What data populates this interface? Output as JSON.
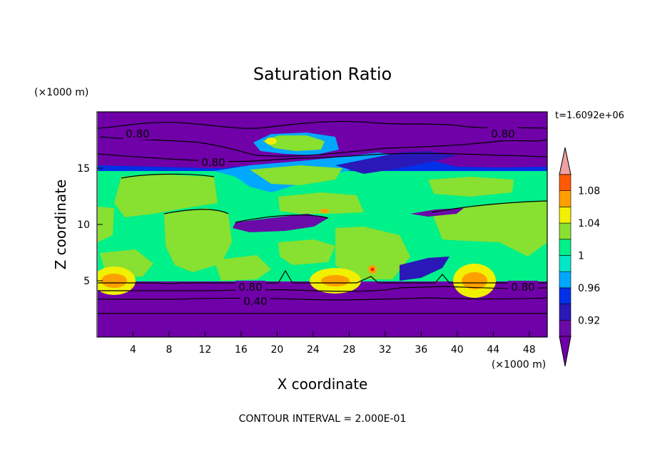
{
  "chart_data": {
    "type": "heatmap",
    "title": "Saturation Ratio",
    "xlabel": "X coordinate",
    "ylabel": "Z coordinate",
    "x_unit_label": "(×1000 m)",
    "y_unit_label": "(×1000 m)",
    "time_label": "t=1.6092e+06",
    "footer": "CONTOUR INTERVAL = 2.000E-01",
    "xlim": [
      0,
      50
    ],
    "ylim": [
      0,
      20
    ],
    "x_ticks": [
      4,
      8,
      12,
      16,
      20,
      24,
      28,
      32,
      36,
      40,
      44,
      48
    ],
    "y_ticks": [
      5,
      10,
      15
    ],
    "colorbar": {
      "levels": [
        0.9,
        0.92,
        0.94,
        0.96,
        0.98,
        1.0,
        1.02,
        1.04,
        1.06,
        1.08,
        1.1
      ],
      "labels": [
        "0.92",
        "0.96",
        "1",
        "1.04",
        "1.08"
      ],
      "label_values": [
        0.92,
        0.96,
        1.0,
        1.04,
        1.08
      ],
      "colors": [
        "#6a0aa8",
        "#2a18b8",
        "#0030e8",
        "#00a8ff",
        "#00e8c8",
        "#00f08a",
        "#88e030",
        "#f0f000",
        "#ffa000",
        "#ff5a00",
        "#e82020"
      ],
      "under_color": "#7000a8",
      "over_color": "#f0a0a0"
    },
    "contour_labels": [
      "0.80",
      "0.80",
      "0.80",
      "0.80",
      "0.80",
      "0.40"
    ]
  }
}
